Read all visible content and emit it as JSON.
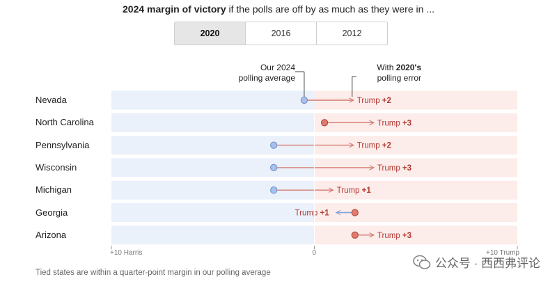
{
  "title": {
    "bold": "2024 margin of victory",
    "rest": "if the polls are off by as much as they were in ..."
  },
  "tabs": [
    {
      "label": "2020",
      "active": true
    },
    {
      "label": "2016",
      "active": false
    },
    {
      "label": "2012",
      "active": false
    }
  ],
  "annotations": {
    "polling_line1": "Our 2024",
    "polling_line2": "polling average",
    "error_prefix": "With ",
    "error_year": "2020's",
    "error_line2": "polling error"
  },
  "chart_data": {
    "type": "dot-arrow",
    "x_axis": {
      "range": [
        -10,
        10
      ],
      "ticks": [
        {
          "value": -10,
          "label": "+10 Harris"
        },
        {
          "value": 0,
          "label": "0"
        },
        {
          "value": 10,
          "label": "+10 Trump"
        }
      ]
    },
    "states": [
      {
        "name": "Nevada",
        "poll": -0.5,
        "with_error": 2,
        "label_party": "Trump",
        "label_value": "+2"
      },
      {
        "name": "North Carolina",
        "poll": 0.5,
        "with_error": 3,
        "label_party": "Trump",
        "label_value": "+3"
      },
      {
        "name": "Pennsylvania",
        "poll": -2,
        "with_error": 2,
        "label_party": "Trump",
        "label_value": "+2"
      },
      {
        "name": "Wisconsin",
        "poll": -2,
        "with_error": 3,
        "label_party": "Trump",
        "label_value": "+3"
      },
      {
        "name": "Michigan",
        "poll": -2,
        "with_error": 1,
        "label_party": "Trump",
        "label_value": "+1"
      },
      {
        "name": "Georgia",
        "poll": 2,
        "with_error": 1,
        "label_party": "Trump",
        "label_value": "+1"
      },
      {
        "name": "Arizona",
        "poll": 2,
        "with_error": 3,
        "label_party": "Trump",
        "label_value": "+3"
      }
    ],
    "colors": {
      "harris_bg": "#eaf1fb",
      "trump_bg": "#fcecea",
      "harris_dot": "#a9c0ea",
      "harris_dot_stroke": "#6f8fcf",
      "trump_dot": "#de7a6e",
      "trump_dot_stroke": "#b9473c",
      "trump_arrow": "#d47a70",
      "harris_arrow": "#7f9fd6",
      "trump_text": "#b23a32"
    }
  },
  "footnote": "Tied states are within a quarter-point margin in our polling average",
  "watermark": "公众号 · 西西弗评论"
}
